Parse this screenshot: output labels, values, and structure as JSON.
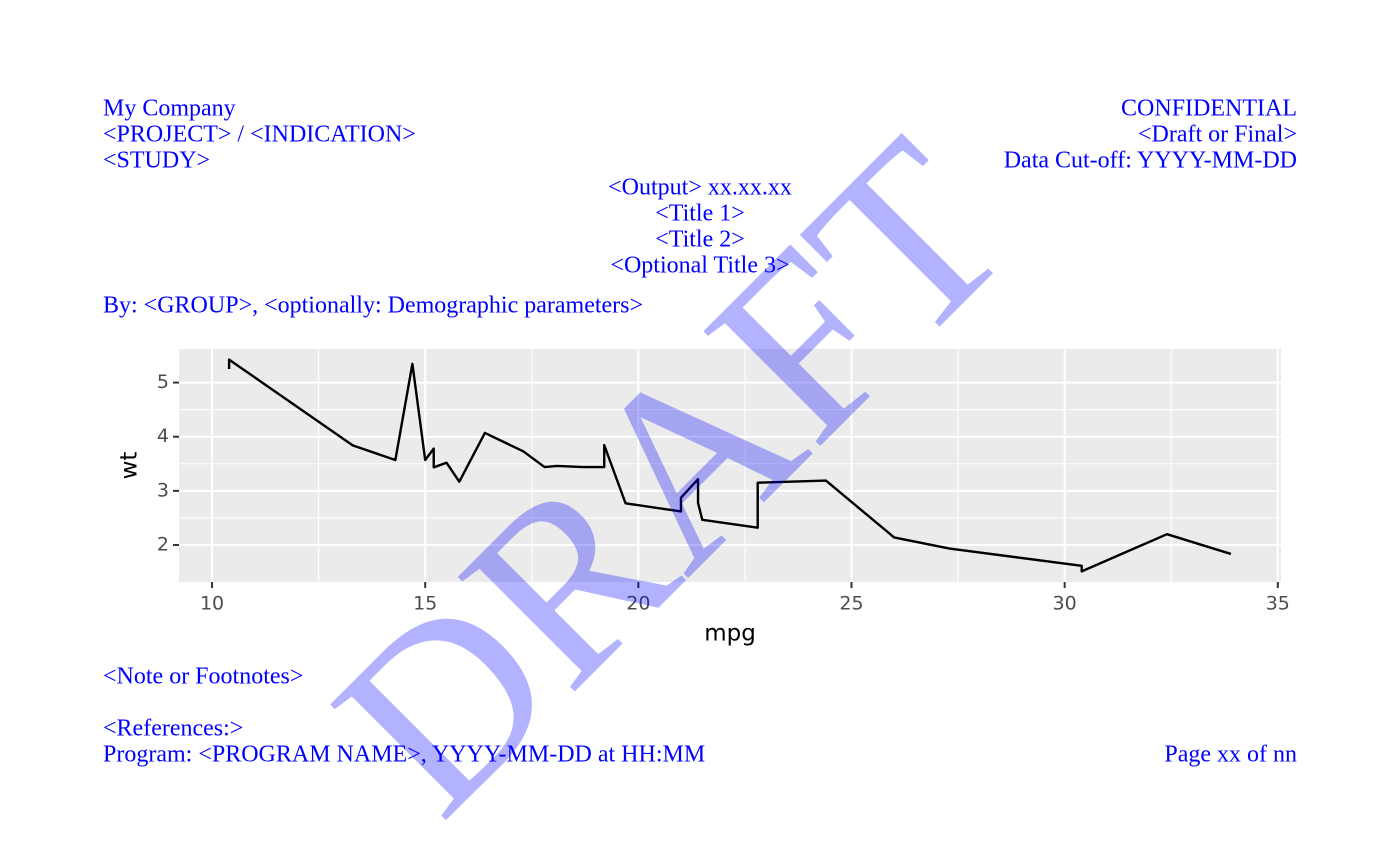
{
  "header": {
    "left": [
      "My Company",
      "<PROJECT> / <INDICATION>",
      "<STUDY>"
    ],
    "right": [
      "CONFIDENTIAL",
      "<Draft or Final>",
      "Data Cut-off: YYYY-MM-DD"
    ]
  },
  "titles": [
    "<Output> xx.xx.xx",
    "<Title 1>",
    "<Title 2>",
    "<Optional Title 3>"
  ],
  "subtitle": "By: <GROUP>, <optionally: Demographic parameters>",
  "chart_data": {
    "type": "line",
    "x_label": "mpg",
    "y_label": "wt",
    "x": [
      10.4,
      10.4,
      13.3,
      14.3,
      14.7,
      15.0,
      15.2,
      15.2,
      15.5,
      15.8,
      16.4,
      17.3,
      17.8,
      18.1,
      18.7,
      19.2,
      19.2,
      19.7,
      21.0,
      21.0,
      21.4,
      21.4,
      21.5,
      22.8,
      22.8,
      24.4,
      26.0,
      27.3,
      30.4,
      30.4,
      32.4,
      33.9
    ],
    "series": [
      {
        "color": "#000000",
        "values": [
          5.25,
          5.424,
          3.84,
          3.57,
          5.345,
          3.57,
          3.78,
          3.435,
          3.52,
          3.17,
          4.07,
          3.73,
          3.44,
          3.46,
          3.44,
          3.44,
          3.845,
          2.77,
          2.62,
          2.875,
          3.215,
          2.78,
          2.465,
          2.32,
          3.15,
          3.19,
          2.14,
          1.935,
          1.615,
          1.513,
          2.2,
          1.835
        ]
      }
    ],
    "xlim": [
      9.225,
      35.075
    ],
    "ylim": [
      1.317,
      5.62
    ],
    "xticks": [
      10,
      15,
      20,
      25,
      30,
      35
    ],
    "yticks": [
      2,
      3,
      4,
      5
    ],
    "grid": true
  },
  "footnotes": [
    "<Note or Footnotes>"
  ],
  "references": "<References:>",
  "program": "Program: <PROGRAM NAME>, YYYY-MM-DD at HH:MM",
  "page": "Page xx of nn",
  "watermark": "DRAFT"
}
